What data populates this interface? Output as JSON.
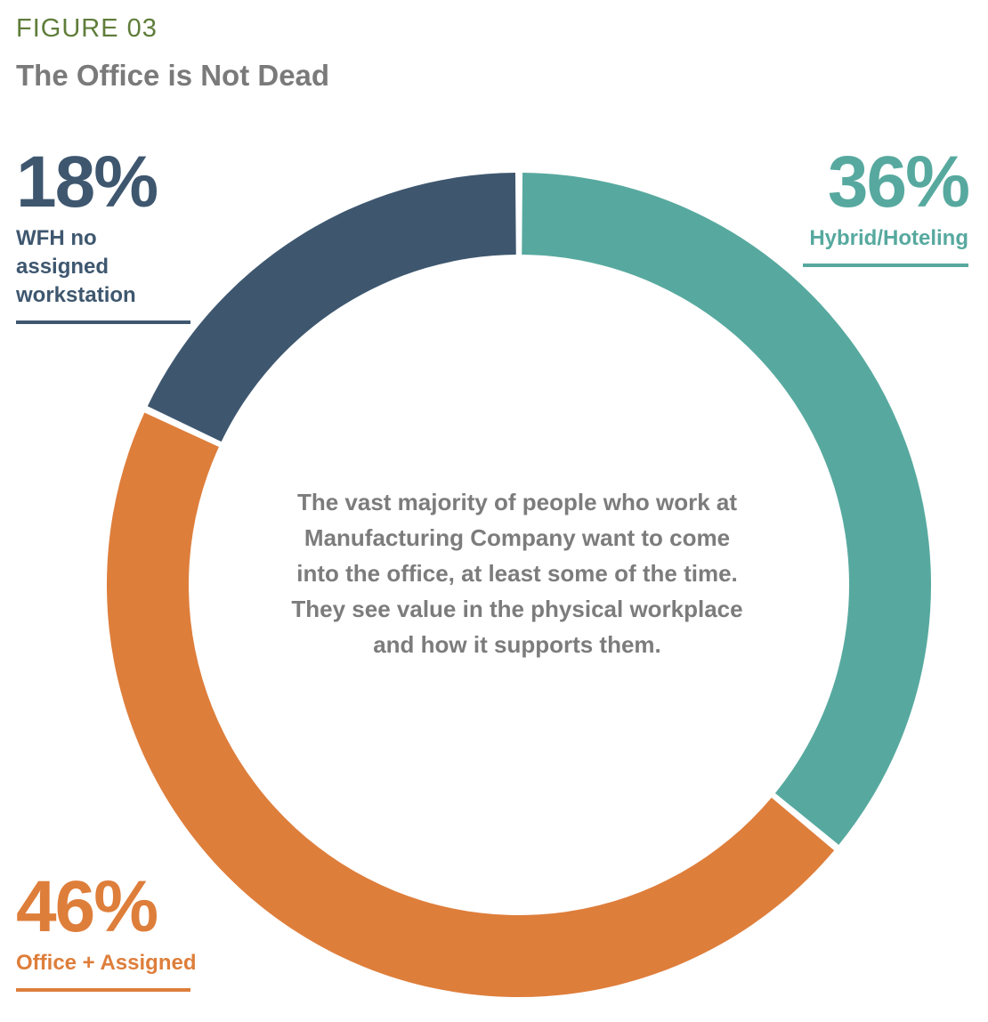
{
  "header": {
    "figure_label": "FIGURE 03",
    "title": "The Office is Not Dead"
  },
  "callouts": {
    "wfh": {
      "pct": "18%",
      "label": "WFH no assigned workstation"
    },
    "hybrid": {
      "pct": "36%",
      "label": "Hybrid/Hoteling"
    },
    "office": {
      "pct": "46%",
      "label": "Office + Assigned"
    }
  },
  "center_text": "The vast majority of people who work at Manufacturing Company want to come into the office, at least some of the time. They see value in the physical workplace and how it supports them.",
  "chart_data": {
    "type": "pie",
    "title": "The Office is Not Dead",
    "categories": [
      "Hybrid/Hoteling",
      "Office + Assigned",
      "WFH no assigned workstation"
    ],
    "values": [
      36,
      46,
      18
    ],
    "unit": "%",
    "colors": [
      "#57a99f",
      "#de7e3b",
      "#3e576f"
    ],
    "donut": true
  }
}
